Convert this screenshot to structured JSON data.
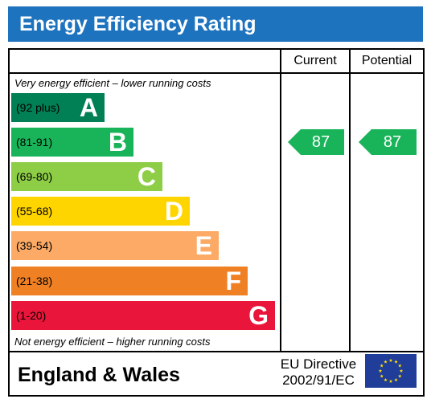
{
  "title": "Energy Efficiency Rating",
  "columns": {
    "current": "Current",
    "potential": "Potential"
  },
  "top_note": "Very energy efficient – lower running costs",
  "bottom_note": "Not energy efficient – higher running costs",
  "bands": [
    {
      "letter": "A",
      "range": "(92 plus)",
      "color": "#008054",
      "text_color": "#ffffff"
    },
    {
      "letter": "B",
      "range": "(81-91)",
      "color": "#19b459",
      "text_color": "#ffffff"
    },
    {
      "letter": "C",
      "range": "(69-80)",
      "color": "#8dce46",
      "text_color": "#ffffff"
    },
    {
      "letter": "D",
      "range": "(55-68)",
      "color": "#ffd500",
      "text_color": "#ffffff"
    },
    {
      "letter": "E",
      "range": "(39-54)",
      "color": "#fcaa65",
      "text_color": "#ffffff"
    },
    {
      "letter": "F",
      "range": "(21-38)",
      "color": "#ef8023",
      "text_color": "#ffffff"
    },
    {
      "letter": "G",
      "range": "(1-20)",
      "color": "#e9153b",
      "text_color": "#ffffff"
    }
  ],
  "ratings": {
    "current": {
      "value": "87",
      "band": "B",
      "color": "#19b459"
    },
    "potential": {
      "value": "87",
      "band": "B",
      "color": "#19b459"
    }
  },
  "footer": {
    "region": "England & Wales",
    "directive_line1": "EU Directive",
    "directive_line2": "2002/91/EC"
  }
}
